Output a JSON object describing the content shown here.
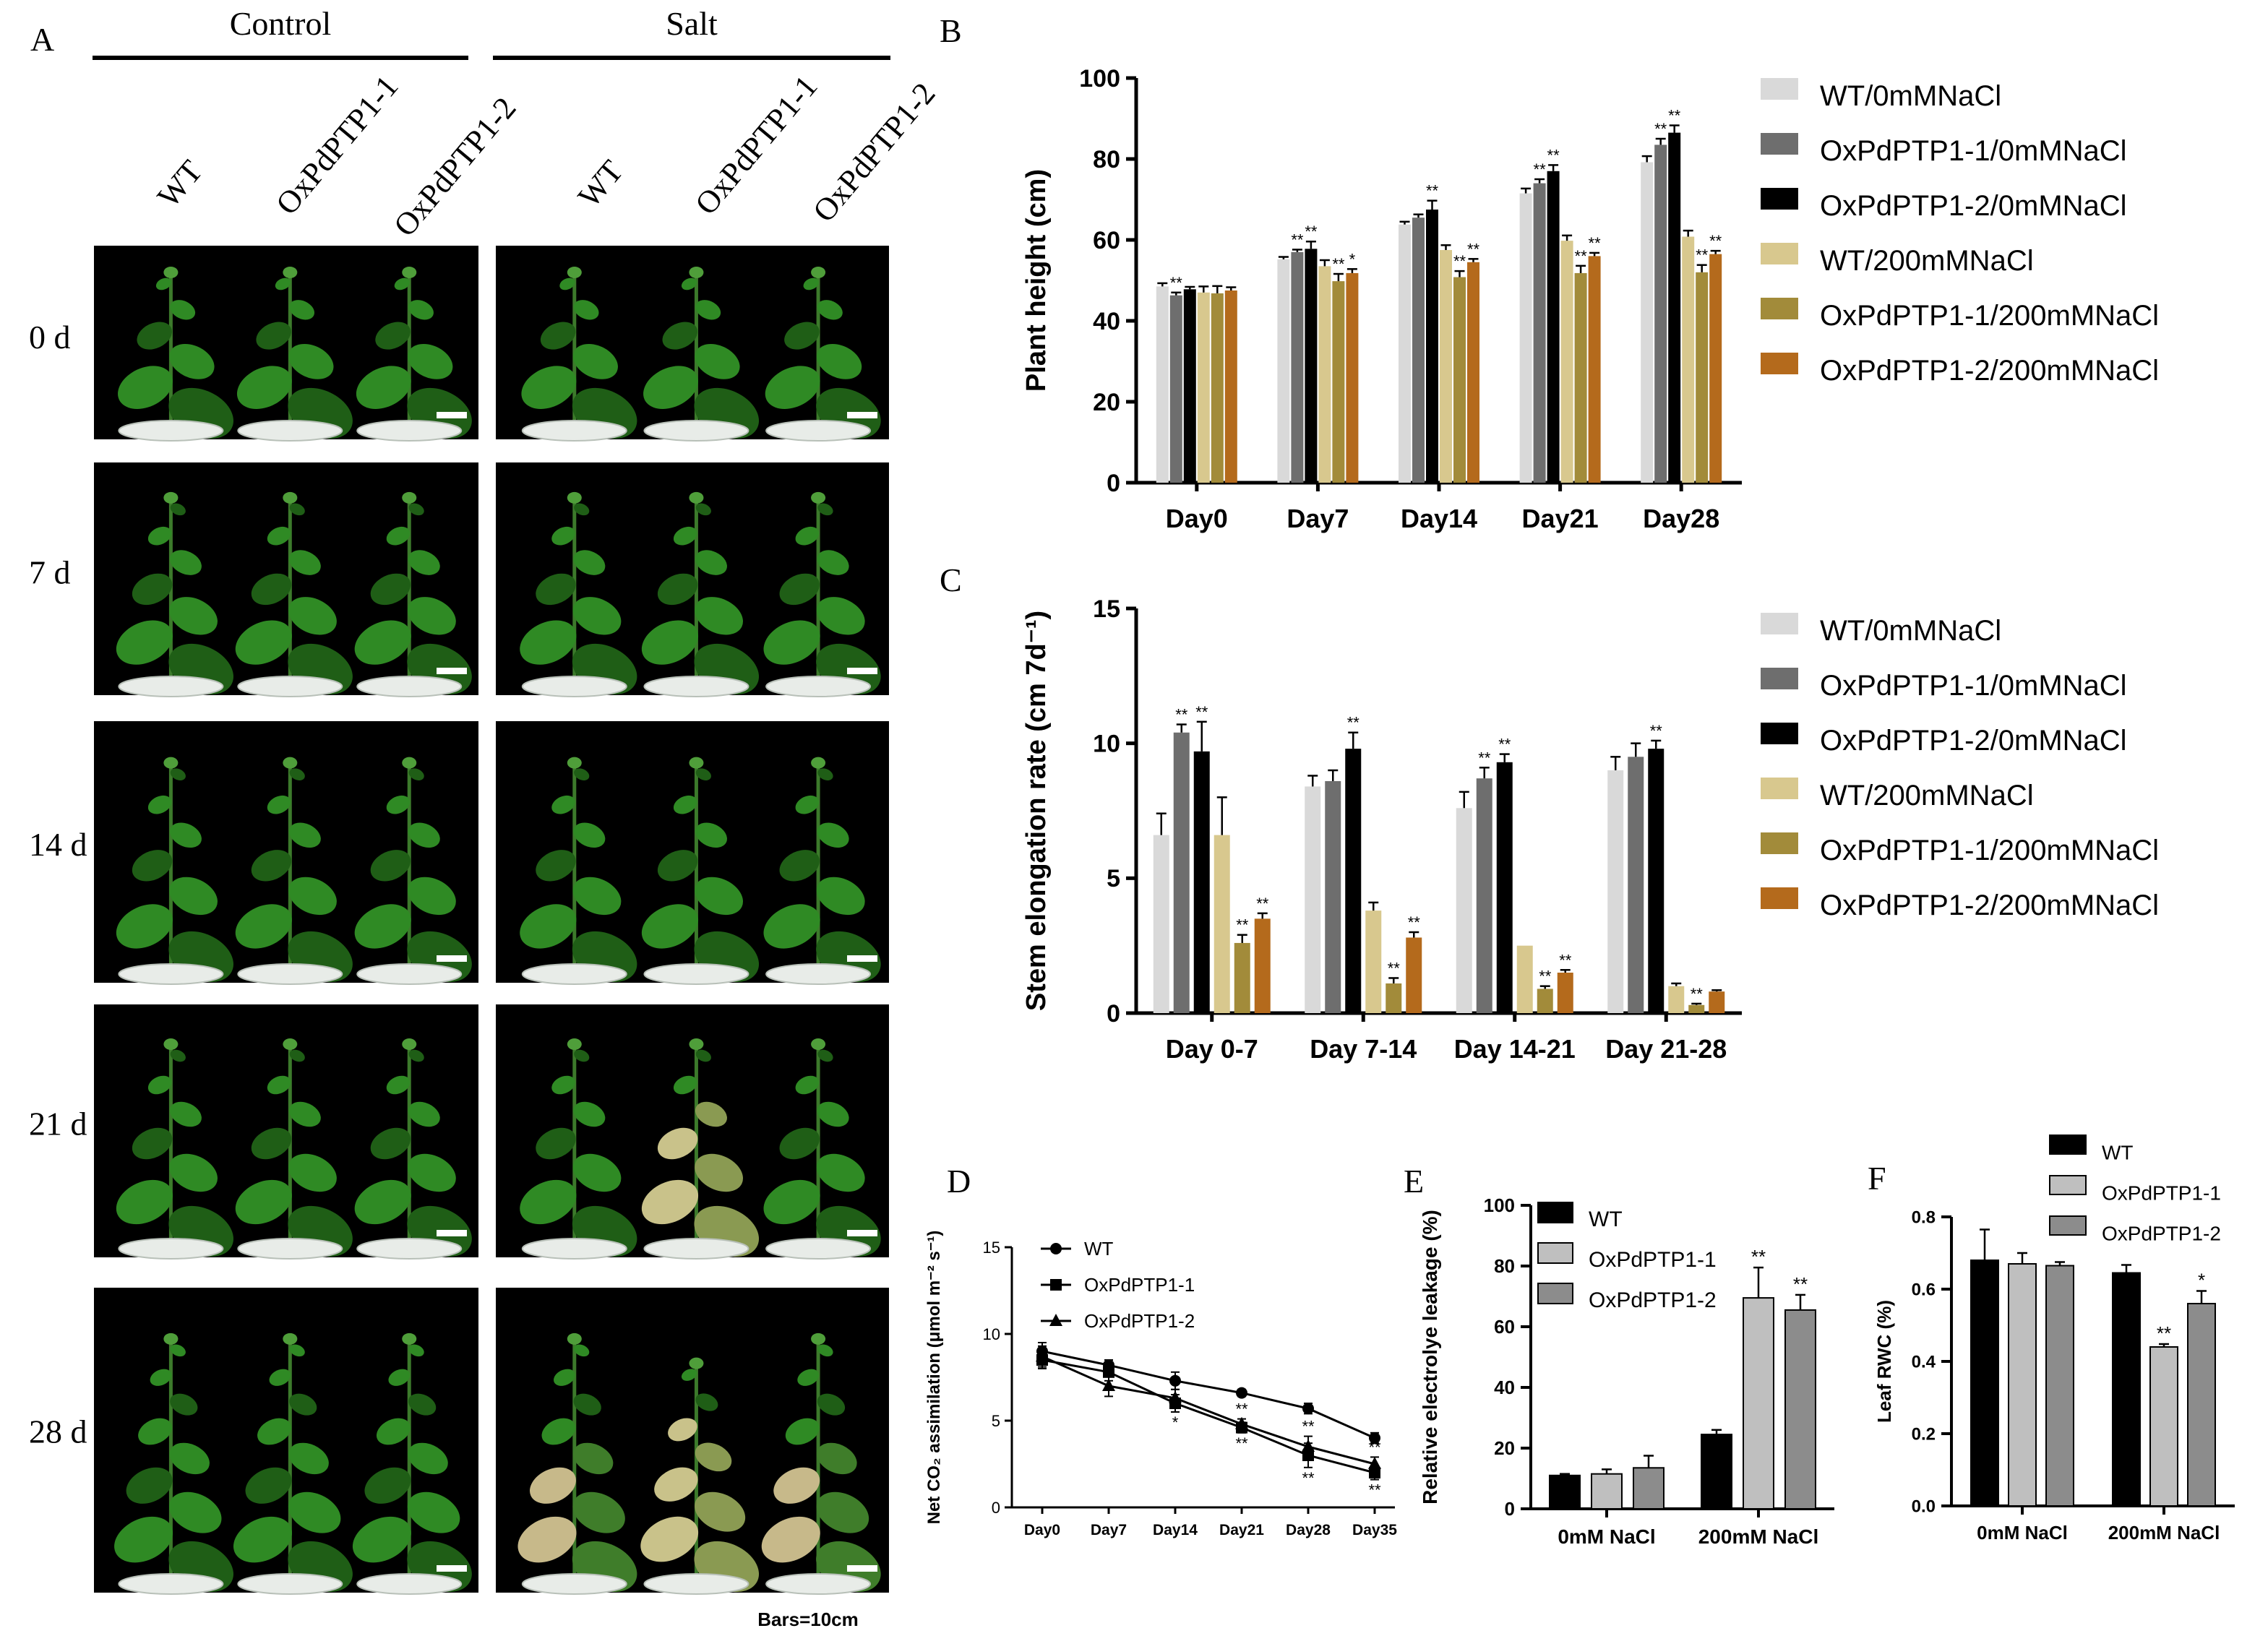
{
  "panel_A": {
    "letter": "A",
    "groups": [
      "Control",
      "Salt"
    ],
    "line_labels": [
      "WT",
      "OxPdPTP1-1",
      "OxPdPTP1-2"
    ],
    "row_labels": [
      "0 d",
      "7 d",
      "14 d",
      "21 d",
      "28 d"
    ],
    "plant_counts": [
      3,
      3
    ],
    "scale_note": "Bars=10cm"
  },
  "colors": {
    "wt_ctrl": "#d9d9d9",
    "ox1_ctrl": "#6e6e6e",
    "ox2_ctrl": "#000000",
    "wt_salt": "#d8c88e",
    "ox1_salt": "#a28b3a",
    "ox2_salt": "#b46a1c",
    "gray_light": "#bfbfbf",
    "gray_dark": "#8c8c8c",
    "photo_bg": "#000000"
  },
  "chart_data": [
    {
      "panel": "B",
      "type": "bar",
      "ylabel": "Plant height (cm)",
      "ylim": [
        0,
        100
      ],
      "yticks": [
        0,
        20,
        40,
        60,
        80,
        100
      ],
      "categories": [
        "Day0",
        "Day7",
        "Day14",
        "Day21",
        "Day28"
      ],
      "legend_position": "right",
      "series": [
        {
          "name": "WT/0mMNaCl",
          "values": [
            48.5,
            55.2,
            63.8,
            71.5,
            79.2
          ],
          "errors": [
            0.8,
            0.6,
            0.7,
            1.2,
            1.5
          ],
          "sig": [
            "",
            "",
            "",
            "",
            ""
          ]
        },
        {
          "name": "OxPdPTP1-1/0mMNaCl",
          "values": [
            46.3,
            57.0,
            65.5,
            74.0,
            83.5
          ],
          "errors": [
            0.7,
            0.6,
            0.8,
            1.0,
            1.5
          ],
          "sig": [
            "**",
            "**",
            "",
            "**",
            "**"
          ]
        },
        {
          "name": "OxPdPTP1-2/0mMNaCl",
          "values": [
            47.8,
            57.8,
            67.5,
            77.0,
            86.5
          ],
          "errors": [
            0.6,
            1.8,
            2.2,
            1.5,
            1.8
          ],
          "sig": [
            "",
            "**",
            "**",
            "**",
            "**"
          ]
        },
        {
          "name": "WT/200mMNaCl",
          "values": [
            47.0,
            53.5,
            57.5,
            59.8,
            60.8
          ],
          "errors": [
            1.5,
            1.5,
            1.2,
            1.3,
            1.5
          ],
          "sig": [
            "",
            "",
            "",
            "",
            ""
          ]
        },
        {
          "name": "OxPdPTP1-1/200mMNaCl",
          "values": [
            46.8,
            49.8,
            50.8,
            51.8,
            52.0
          ],
          "errors": [
            1.8,
            1.8,
            1.5,
            1.8,
            1.8
          ],
          "sig": [
            "",
            "**",
            "**",
            "**",
            "**"
          ]
        },
        {
          "name": "OxPdPTP1-2/200mMNaCl",
          "values": [
            47.5,
            51.8,
            54.5,
            56.0,
            56.5
          ],
          "errors": [
            0.8,
            1.0,
            0.8,
            0.8,
            0.8
          ],
          "sig": [
            "",
            "*",
            "**",
            "**",
            "**"
          ]
        }
      ]
    },
    {
      "panel": "C",
      "type": "bar",
      "ylabel": "Stem elongation rate (cm 7d⁻¹)",
      "ylim": [
        0,
        15
      ],
      "yticks": [
        0,
        5,
        10,
        15
      ],
      "categories": [
        "Day 0-7",
        "Day 7-14",
        "Day 14-21",
        "Day 21-28"
      ],
      "legend_position": "right",
      "series": [
        {
          "name": "WT/0mMNaCl",
          "values": [
            6.6,
            8.4,
            7.6,
            9.0
          ],
          "errors": [
            0.8,
            0.4,
            0.6,
            0.5
          ],
          "sig": [
            "",
            "",
            "",
            ""
          ]
        },
        {
          "name": "OxPdPTP1-1/0mMNaCl",
          "values": [
            10.4,
            8.6,
            8.7,
            9.5
          ],
          "errors": [
            0.3,
            0.4,
            0.4,
            0.5
          ],
          "sig": [
            "**",
            "",
            "**",
            ""
          ]
        },
        {
          "name": "OxPdPTP1-2/0mMNaCl",
          "values": [
            9.7,
            9.8,
            9.3,
            9.8
          ],
          "errors": [
            1.1,
            0.6,
            0.3,
            0.3
          ],
          "sig": [
            "**",
            "**",
            "**",
            "**"
          ]
        },
        {
          "name": "WT/200mMNaCl",
          "values": [
            6.6,
            3.8,
            2.5,
            1.0
          ],
          "errors": [
            1.4,
            0.3,
            0.0,
            0.1
          ],
          "sig": [
            "",
            "",
            "",
            ""
          ]
        },
        {
          "name": "OxPdPTP1-1/200mMNaCl",
          "values": [
            2.6,
            1.1,
            0.9,
            0.3
          ],
          "errors": [
            0.3,
            0.2,
            0.1,
            0.05
          ],
          "sig": [
            "**",
            "**",
            "**",
            "**"
          ]
        },
        {
          "name": "OxPdPTP1-2/200mMNaCl",
          "values": [
            3.5,
            2.8,
            1.5,
            0.8
          ],
          "errors": [
            0.2,
            0.2,
            0.1,
            0.05
          ],
          "sig": [
            "**",
            "**",
            "**",
            ""
          ]
        }
      ]
    },
    {
      "panel": "D",
      "type": "line",
      "ylabel": "Net CO₂ assimilation (μmol m⁻² s⁻¹)",
      "ylim": [
        0,
        15
      ],
      "yticks": [
        0,
        5,
        10,
        15
      ],
      "x": [
        "Day0",
        "Day7",
        "Day14",
        "Day21",
        "Day28",
        "Day35"
      ],
      "legend_position": "top-left",
      "series": [
        {
          "name": "WT",
          "marker": "circle",
          "values": [
            9.0,
            8.2,
            7.3,
            6.6,
            5.7,
            4.0
          ],
          "errors": [
            0.5,
            0.3,
            0.5,
            0.2,
            0.3,
            0.3
          ],
          "sig": [
            "",
            "",
            "",
            "",
            "",
            ""
          ]
        },
        {
          "name": "OxPdPTP1-1",
          "marker": "square",
          "values": [
            8.5,
            7.8,
            6.0,
            4.6,
            3.0,
            2.0
          ],
          "errors": [
            0.5,
            0.5,
            0.5,
            0.3,
            0.7,
            0.4
          ],
          "sig": [
            "",
            "",
            "*",
            "**",
            "**",
            "**"
          ]
        },
        {
          "name": "OxPdPTP1-2",
          "marker": "triangle",
          "values": [
            8.7,
            7.0,
            6.3,
            4.8,
            3.5,
            2.5
          ],
          "errors": [
            0.6,
            0.6,
            0.5,
            0.3,
            0.6,
            0.4
          ],
          "sig": [
            "",
            "",
            "",
            "**",
            "**",
            "**"
          ]
        }
      ]
    },
    {
      "panel": "E",
      "type": "bar",
      "ylabel": "Relative electrolye leakage (%)",
      "ylim": [
        0,
        100
      ],
      "yticks": [
        0,
        20,
        40,
        60,
        80,
        100
      ],
      "categories": [
        "0mM NaCl",
        "200mM NaCl"
      ],
      "legend_position": "top-left",
      "series": [
        {
          "name": "WT",
          "values": [
            11.0,
            24.5
          ],
          "errors": [
            0.5,
            1.5
          ],
          "sig": [
            "",
            ""
          ]
        },
        {
          "name": "OxPdPTP1-1",
          "values": [
            11.5,
            69.5
          ],
          "errors": [
            1.5,
            10.0
          ],
          "sig": [
            "",
            "**"
          ]
        },
        {
          "name": "OxPdPTP1-2",
          "values": [
            13.5,
            65.5
          ],
          "errors": [
            4.0,
            5.0
          ],
          "sig": [
            "",
            "**"
          ]
        }
      ]
    },
    {
      "panel": "F",
      "type": "bar",
      "ylabel": "Leaf RWC (%)",
      "ylim": [
        0,
        0.8
      ],
      "yticks": [
        "0.0",
        "0.2",
        "0.4",
        "0.6",
        "0.8"
      ],
      "categories": [
        "0mM NaCl",
        "200mM NaCl"
      ],
      "legend_position": "top",
      "series": [
        {
          "name": "WT",
          "values": [
            0.68,
            0.645
          ],
          "errors": [
            0.085,
            0.022
          ],
          "sig": [
            "",
            ""
          ]
        },
        {
          "name": "OxPdPTP1-1",
          "values": [
            0.67,
            0.44
          ],
          "errors": [
            0.03,
            0.008
          ],
          "sig": [
            "",
            "**"
          ]
        },
        {
          "name": "OxPdPTP1-2",
          "values": [
            0.665,
            0.56
          ],
          "errors": [
            0.01,
            0.035
          ],
          "sig": [
            "",
            "*"
          ]
        }
      ]
    }
  ]
}
